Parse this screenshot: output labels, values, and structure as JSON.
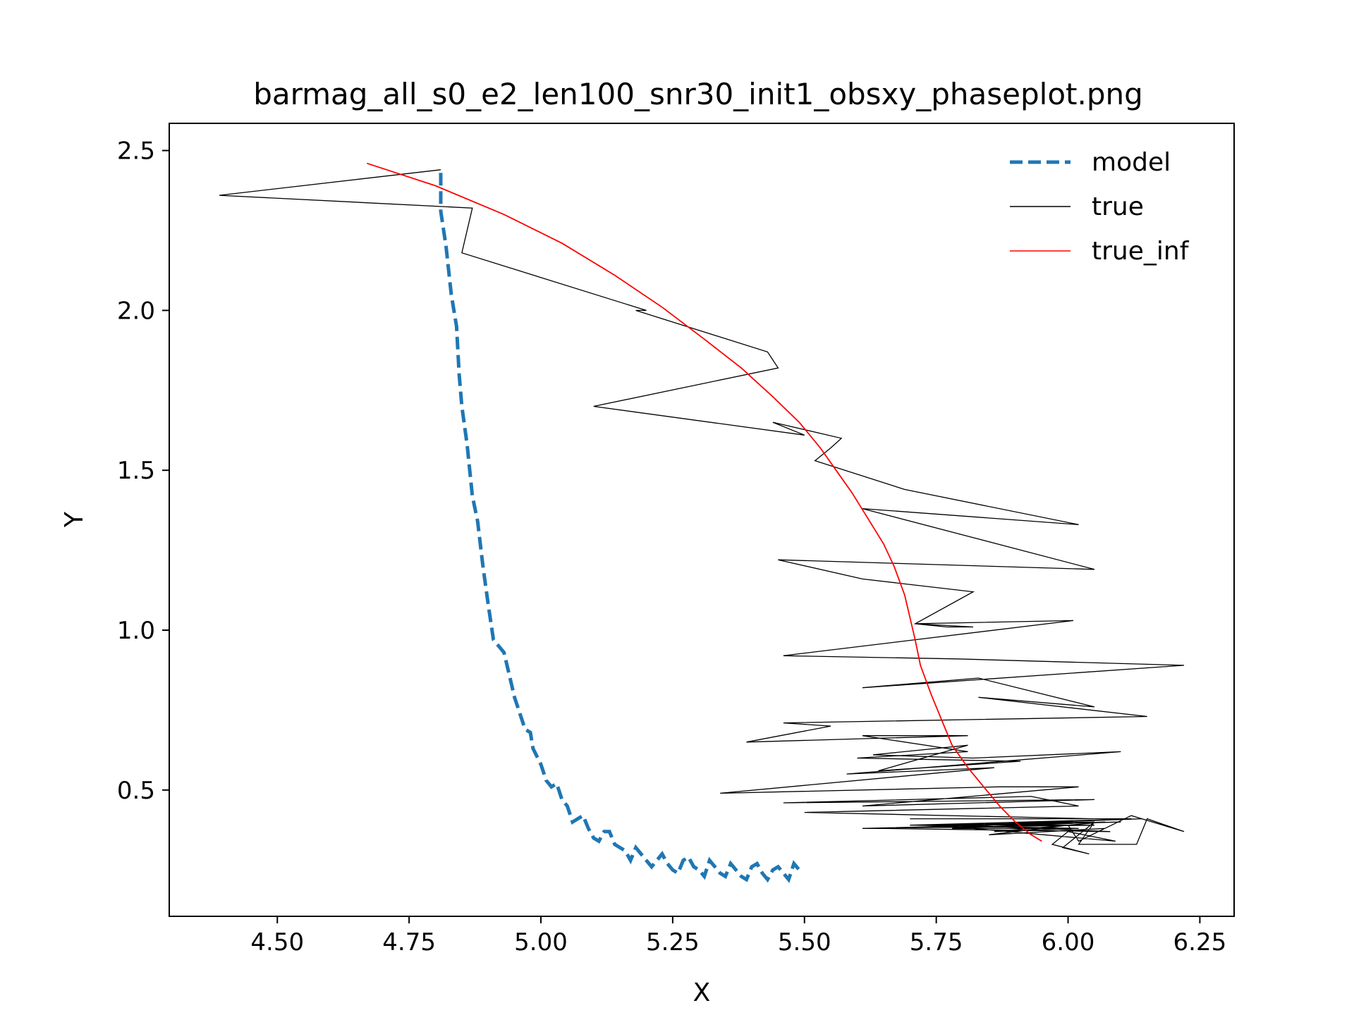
{
  "chart_data": {
    "type": "line",
    "title": "barmag_all_s0_e2_len100_snr30_init1_obsxy_phaseplot.png",
    "xlabel": "X",
    "ylabel": "Y",
    "xlim": [
      4.295,
      6.315
    ],
    "ylim": [
      0.105,
      2.585
    ],
    "xticks": [
      4.5,
      4.75,
      5.0,
      5.25,
      5.5,
      5.75,
      6.0,
      6.25
    ],
    "xtick_labels": [
      "4.50",
      "4.75",
      "5.00",
      "5.25",
      "5.50",
      "5.75",
      "6.00",
      "6.25"
    ],
    "yticks": [
      0.5,
      1.0,
      1.5,
      2.0,
      2.5
    ],
    "ytick_labels": [
      "0.5",
      "1.0",
      "1.5",
      "2.0",
      "2.5"
    ],
    "legend_position": "upper right",
    "grid": false,
    "series": [
      {
        "name": "model",
        "color": "#1f77b4",
        "style": "dashed",
        "points": [
          [
            4.81,
            2.43
          ],
          [
            4.81,
            2.31
          ],
          [
            4.82,
            2.2
          ],
          [
            4.83,
            2.05
          ],
          [
            4.84,
            1.95
          ],
          [
            4.845,
            1.8
          ],
          [
            4.85,
            1.7
          ],
          [
            4.86,
            1.58
          ],
          [
            4.87,
            1.42
          ],
          [
            4.88,
            1.34
          ],
          [
            4.89,
            1.2
          ],
          [
            4.9,
            1.08
          ],
          [
            4.91,
            0.97
          ],
          [
            4.92,
            0.95
          ],
          [
            4.93,
            0.93
          ],
          [
            4.94,
            0.86
          ],
          [
            4.95,
            0.79
          ],
          [
            4.96,
            0.74
          ],
          [
            4.97,
            0.69
          ],
          [
            4.98,
            0.68
          ],
          [
            4.985,
            0.63
          ],
          [
            5.0,
            0.58
          ],
          [
            5.01,
            0.53
          ],
          [
            5.02,
            0.51
          ],
          [
            5.03,
            0.52
          ],
          [
            5.04,
            0.47
          ],
          [
            5.05,
            0.45
          ],
          [
            5.06,
            0.4
          ],
          [
            5.07,
            0.41
          ],
          [
            5.08,
            0.42
          ],
          [
            5.09,
            0.38
          ],
          [
            5.1,
            0.35
          ],
          [
            5.11,
            0.34
          ],
          [
            5.12,
            0.37
          ],
          [
            5.13,
            0.37
          ],
          [
            5.14,
            0.33
          ],
          [
            5.15,
            0.32
          ],
          [
            5.16,
            0.31
          ],
          [
            5.17,
            0.28
          ],
          [
            5.18,
            0.32
          ],
          [
            5.19,
            0.3
          ],
          [
            5.2,
            0.28
          ],
          [
            5.21,
            0.26
          ],
          [
            5.22,
            0.28
          ],
          [
            5.23,
            0.3
          ],
          [
            5.24,
            0.27
          ],
          [
            5.25,
            0.25
          ],
          [
            5.26,
            0.24
          ],
          [
            5.27,
            0.28
          ],
          [
            5.28,
            0.29
          ],
          [
            5.29,
            0.26
          ],
          [
            5.3,
            0.25
          ],
          [
            5.31,
            0.23
          ],
          [
            5.32,
            0.28
          ],
          [
            5.33,
            0.26
          ],
          [
            5.34,
            0.24
          ],
          [
            5.35,
            0.23
          ],
          [
            5.36,
            0.27
          ],
          [
            5.37,
            0.25
          ],
          [
            5.38,
            0.23
          ],
          [
            5.39,
            0.22
          ],
          [
            5.4,
            0.26
          ],
          [
            5.41,
            0.27
          ],
          [
            5.42,
            0.24
          ],
          [
            5.43,
            0.22
          ],
          [
            5.44,
            0.25
          ],
          [
            5.45,
            0.26
          ],
          [
            5.46,
            0.24
          ],
          [
            5.47,
            0.22
          ],
          [
            5.48,
            0.27
          ],
          [
            5.49,
            0.25
          ]
        ]
      },
      {
        "name": "true",
        "color": "#000000",
        "style": "solid",
        "points": [
          [
            4.81,
            2.44
          ],
          [
            4.39,
            2.36
          ],
          [
            4.87,
            2.32
          ],
          [
            4.85,
            2.18
          ],
          [
            5.2,
            2.0
          ],
          [
            5.18,
            2.0
          ],
          [
            5.43,
            1.87
          ],
          [
            5.45,
            1.82
          ],
          [
            5.1,
            1.7
          ],
          [
            5.5,
            1.61
          ],
          [
            5.44,
            1.65
          ],
          [
            5.57,
            1.6
          ],
          [
            5.55,
            1.57
          ],
          [
            5.52,
            1.53
          ],
          [
            5.69,
            1.44
          ],
          [
            6.02,
            1.33
          ],
          [
            5.61,
            1.38
          ],
          [
            6.05,
            1.19
          ],
          [
            5.45,
            1.22
          ],
          [
            5.61,
            1.16
          ],
          [
            5.82,
            1.12
          ],
          [
            5.71,
            1.02
          ],
          [
            5.77,
            1.01
          ],
          [
            5.82,
            1.01
          ],
          [
            5.71,
            1.02
          ],
          [
            6.01,
            1.03
          ],
          [
            5.46,
            0.92
          ],
          [
            5.79,
            0.91
          ],
          [
            6.22,
            0.89
          ],
          [
            5.61,
            0.82
          ],
          [
            5.83,
            0.85
          ],
          [
            6.05,
            0.76
          ],
          [
            5.83,
            0.79
          ],
          [
            6.15,
            0.73
          ],
          [
            5.46,
            0.71
          ],
          [
            5.55,
            0.7
          ],
          [
            5.39,
            0.65
          ],
          [
            5.81,
            0.67
          ],
          [
            5.61,
            0.67
          ],
          [
            5.81,
            0.62
          ],
          [
            5.6,
            0.6
          ],
          [
            5.91,
            0.59
          ],
          [
            5.64,
            0.56
          ],
          [
            5.81,
            0.64
          ],
          [
            5.63,
            0.61
          ],
          [
            5.82,
            0.6
          ],
          [
            6.1,
            0.62
          ],
          [
            5.58,
            0.55
          ],
          [
            5.86,
            0.57
          ],
          [
            5.34,
            0.49
          ],
          [
            5.87,
            0.51
          ],
          [
            6.02,
            0.51
          ],
          [
            5.61,
            0.45
          ],
          [
            6.05,
            0.47
          ],
          [
            5.46,
            0.46
          ],
          [
            5.93,
            0.48
          ],
          [
            6.02,
            0.45
          ],
          [
            5.5,
            0.43
          ],
          [
            6.05,
            0.41
          ],
          [
            5.7,
            0.41
          ],
          [
            6.12,
            0.41
          ],
          [
            5.8,
            0.39
          ],
          [
            6.1,
            0.4
          ],
          [
            5.61,
            0.38
          ],
          [
            6.05,
            0.39
          ],
          [
            5.7,
            0.39
          ],
          [
            6.14,
            0.41
          ],
          [
            5.65,
            0.38
          ],
          [
            6.08,
            0.37
          ],
          [
            5.8,
            0.39
          ],
          [
            6.05,
            0.4
          ],
          [
            5.71,
            0.39
          ],
          [
            6.02,
            0.38
          ],
          [
            5.86,
            0.37
          ],
          [
            6.07,
            0.4
          ],
          [
            5.78,
            0.38
          ],
          [
            6.0,
            0.38
          ],
          [
            5.75,
            0.39
          ],
          [
            6.09,
            0.34
          ],
          [
            6.0,
            0.37
          ],
          [
            5.97,
            0.33
          ],
          [
            6.04,
            0.3
          ],
          [
            5.99,
            0.32
          ],
          [
            6.05,
            0.4
          ],
          [
            6.02,
            0.33
          ],
          [
            6.13,
            0.33
          ],
          [
            6.15,
            0.41
          ],
          [
            6.22,
            0.37
          ],
          [
            6.12,
            0.42
          ],
          [
            6.02,
            0.34
          ],
          [
            6.0,
            0.39
          ],
          [
            5.85,
            0.36
          ],
          [
            6.07,
            0.38
          ]
        ]
      },
      {
        "name": "true_inf",
        "color": "#ff0000",
        "style": "solid",
        "points": [
          [
            4.67,
            2.46
          ],
          [
            4.8,
            2.39
          ],
          [
            4.93,
            2.3
          ],
          [
            5.04,
            2.21
          ],
          [
            5.14,
            2.11
          ],
          [
            5.23,
            2.01
          ],
          [
            5.31,
            1.91
          ],
          [
            5.38,
            1.82
          ],
          [
            5.44,
            1.73
          ],
          [
            5.49,
            1.65
          ],
          [
            5.53,
            1.57
          ],
          [
            5.56,
            1.5
          ],
          [
            5.59,
            1.43
          ],
          [
            5.62,
            1.35
          ],
          [
            5.65,
            1.27
          ],
          [
            5.67,
            1.2
          ],
          [
            5.69,
            1.11
          ],
          [
            5.7,
            1.04
          ],
          [
            5.71,
            0.97
          ],
          [
            5.72,
            0.89
          ],
          [
            5.74,
            0.8
          ],
          [
            5.76,
            0.72
          ],
          [
            5.78,
            0.64
          ],
          [
            5.81,
            0.57
          ],
          [
            5.84,
            0.51
          ],
          [
            5.87,
            0.45
          ],
          [
            5.9,
            0.4
          ],
          [
            5.93,
            0.36
          ],
          [
            5.95,
            0.34
          ]
        ]
      }
    ]
  }
}
